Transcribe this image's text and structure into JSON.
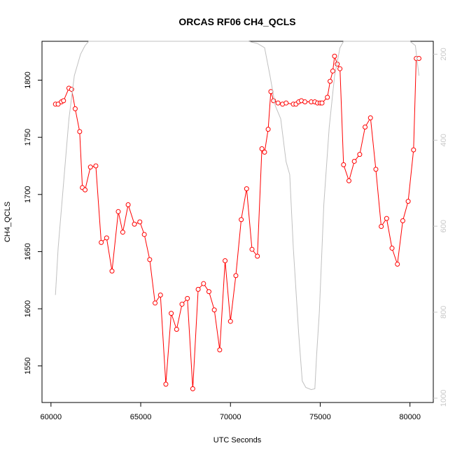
{
  "chart_data": {
    "type": "line",
    "title": "ORCAS RF06 CH4_QCLS",
    "xlabel": "UTC Seconds",
    "ylabel": "CH4_QCLS",
    "xlim": [
      59500,
      81300
    ],
    "ylim": [
      1518,
      1834
    ],
    "y2lim": [
      1010,
      170
    ],
    "y2_reversed": true,
    "x_ticks": [
      60000,
      65000,
      70000,
      75000,
      80000
    ],
    "y_ticks": [
      1550,
      1600,
      1650,
      1700,
      1750,
      1800
    ],
    "y2_ticks": [
      200,
      400,
      600,
      800,
      1000
    ],
    "grid": false,
    "legend": "none",
    "colors": {
      "primary": "#ff0000",
      "secondary": "#c0c0c0"
    },
    "series": [
      {
        "axis": "left",
        "style": "line-points",
        "color": "#ff0000",
        "x": [
          60250,
          60400,
          60580,
          60700,
          61000,
          61150,
          61350,
          61600,
          61750,
          61900,
          62200,
          62500,
          62800,
          63100,
          63400,
          63750,
          64000,
          64300,
          64650,
          64950,
          65200,
          65500,
          65800,
          66100,
          66400,
          66700,
          67000,
          67300,
          67600,
          67900,
          68200,
          68500,
          68800,
          69100,
          69400,
          69700,
          70000,
          70300,
          70600,
          70900,
          71200,
          71500,
          71750,
          71900,
          72100,
          72250,
          72400,
          72650,
          72900,
          73100,
          73500,
          73650,
          73800,
          73950,
          74150,
          74500,
          74700,
          74850,
          75000,
          75100,
          75400,
          75550,
          75700,
          75800,
          75950,
          76100,
          76300,
          76600,
          76900,
          77200,
          77500,
          77800,
          78100,
          78400,
          78700,
          79000,
          79300,
          79600,
          79900,
          80200,
          80350,
          80500
        ],
        "y": [
          1779,
          1779,
          1781,
          1782,
          1793,
          1792,
          1775,
          1755,
          1706,
          1704,
          1724,
          1725,
          1658,
          1662,
          1633,
          1685,
          1667,
          1691,
          1674,
          1676,
          1665,
          1643,
          1605,
          1612,
          1534,
          1596,
          1582,
          1604,
          1609,
          1530,
          1617,
          1622,
          1615,
          1599,
          1564,
          1642,
          1589,
          1629,
          1678,
          1705,
          1652,
          1646,
          1740,
          1737,
          1757,
          1790,
          1782,
          1780,
          1779,
          1780,
          1779,
          1779,
          1781,
          1782,
          1781,
          1781,
          1781,
          1780,
          1780,
          1780,
          1785,
          1799,
          1808,
          1821,
          1814,
          1810,
          1726,
          1712,
          1729,
          1735,
          1759,
          1767,
          1722,
          1672,
          1679,
          1653,
          1639,
          1677,
          1694,
          1739,
          1819,
          1819
        ]
      },
      {
        "axis": "right",
        "style": "line",
        "color": "#c0c0c0",
        "x": [
          60250,
          60400,
          60700,
          61000,
          61300,
          61650,
          61900,
          62100,
          62500,
          63500,
          65000,
          67000,
          69000,
          71000,
          71500,
          71900,
          72200,
          72500,
          72800,
          73100,
          73300,
          73500,
          73800,
          74000,
          74200,
          74500,
          74700,
          74800,
          74950,
          75200,
          75500,
          75800,
          76100,
          76300,
          76600,
          77000,
          78000,
          79000,
          80000,
          80300,
          80500
        ],
        "y": [
          760,
          650,
          500,
          350,
          250,
          200,
          180,
          170,
          170,
          170,
          170,
          170,
          170,
          170,
          175,
          185,
          250,
          320,
          350,
          450,
          480,
          650,
          850,
          960,
          975,
          980,
          978,
          900,
          800,
          550,
          370,
          250,
          185,
          170,
          170,
          170,
          170,
          170,
          170,
          180,
          250
        ]
      }
    ]
  }
}
